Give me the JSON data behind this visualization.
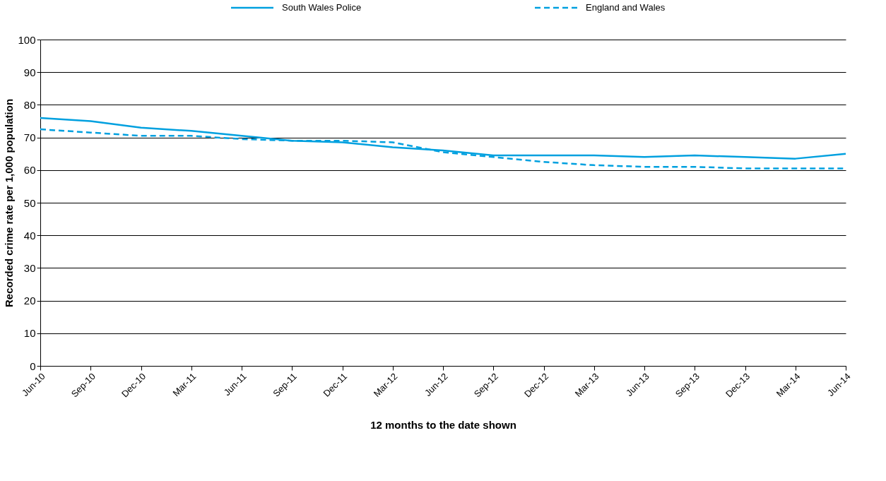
{
  "chart_data": {
    "type": "line",
    "xlabel": "12 months to the date shown",
    "ylabel": "Recorded crime rate per 1,000 population",
    "categories": [
      "Jun-10",
      "Sep-10",
      "Dec-10",
      "Mar-11",
      "Jun-11",
      "Sep-11",
      "Dec-11",
      "Mar-12",
      "Jun-12",
      "Sep-12",
      "Dec-12",
      "Mar-13",
      "Jun-13",
      "Sep-13",
      "Dec-13",
      "Mar-14",
      "Jun-14"
    ],
    "series": [
      {
        "name": "South Wales Police",
        "color": "#00a0df",
        "line_style": "solid",
        "values": [
          76,
          75,
          73,
          72,
          70.5,
          69,
          68.5,
          67,
          66,
          64.5,
          64.5,
          64.5,
          64,
          64.5,
          64,
          63.5,
          65
        ]
      },
      {
        "name": "England and Wales",
        "color": "#00a0df",
        "line_style": "dashed",
        "values": [
          72.5,
          71.5,
          70.5,
          70.5,
          69.5,
          69,
          69,
          68.5,
          65.5,
          64,
          62.5,
          61.5,
          61,
          61,
          60.5,
          60.5,
          60.5
        ]
      }
    ],
    "ylim": [
      0,
      100
    ],
    "yticks": [
      0,
      10,
      20,
      30,
      40,
      50,
      60,
      70,
      80,
      90,
      100
    ],
    "grid": "y",
    "legend": "top",
    "marker": "none"
  }
}
